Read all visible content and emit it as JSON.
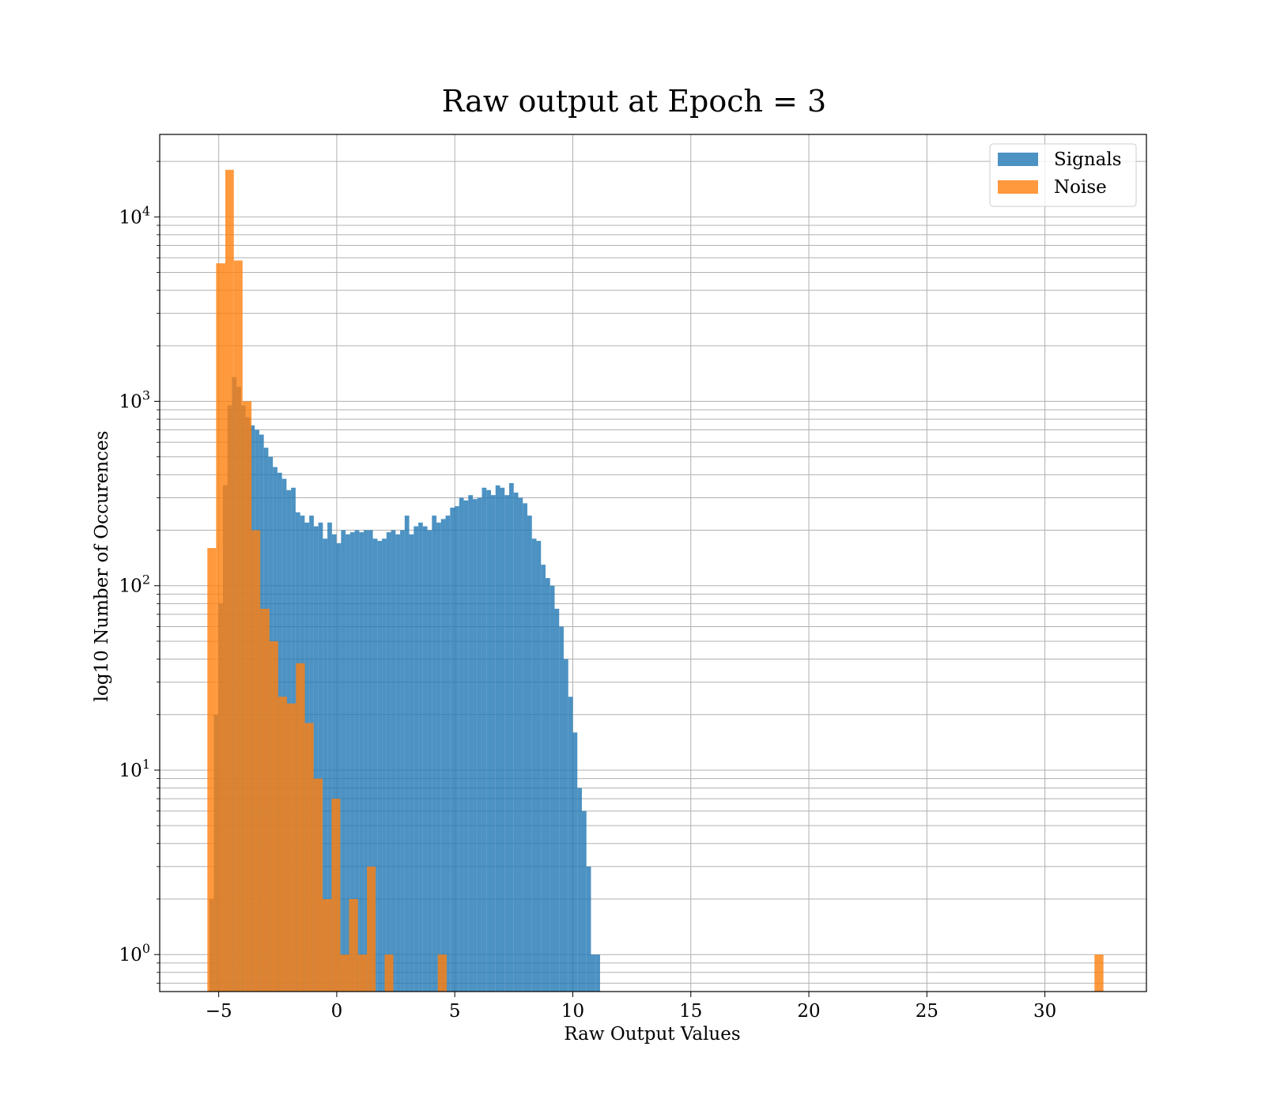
{
  "chart_data": {
    "type": "bar",
    "title": "Raw output at Epoch = 3",
    "xlabel": "Raw Output Values",
    "ylabel": "log10 Number of Occurences",
    "yscale": "log",
    "xlim": [
      -7.5,
      34.3
    ],
    "ylim": [
      0.63,
      28000
    ],
    "xticks": [
      -5,
      0,
      5,
      10,
      15,
      20,
      25,
      30
    ],
    "xtick_labels": [
      "−5",
      "0",
      "5",
      "10",
      "15",
      "20",
      "25",
      "30"
    ],
    "yticks": [
      1,
      10,
      100,
      1000,
      10000
    ],
    "ytick_labels": [
      {
        "base": "10",
        "exp": "0"
      },
      {
        "base": "10",
        "exp": "1"
      },
      {
        "base": "10",
        "exp": "2"
      },
      {
        "base": "10",
        "exp": "3"
      },
      {
        "base": "10",
        "exp": "4"
      }
    ],
    "grid": true,
    "legend_position": "top-right",
    "series": [
      {
        "name": "Signals",
        "color": "#1f77b4",
        "opacity": 0.8,
        "bin_start": -5.4,
        "bin_width": 0.1925,
        "values": [
          2,
          20,
          80,
          350,
          950,
          1350,
          1200,
          950,
          820,
          740,
          700,
          660,
          560,
          500,
          440,
          410,
          380,
          330,
          340,
          250,
          240,
          220,
          240,
          210,
          220,
          180,
          220,
          190,
          170,
          200,
          190,
          195,
          200,
          195,
          200,
          200,
          180,
          175,
          180,
          195,
          200,
          190,
          200,
          240,
          190,
          210,
          220,
          210,
          200,
          240,
          220,
          230,
          240,
          265,
          270,
          300,
          290,
          310,
          295,
          300,
          340,
          330,
          310,
          350,
          340,
          310,
          360,
          320,
          300,
          280,
          240,
          180,
          175,
          130,
          110,
          100,
          75,
          60,
          40,
          25,
          16,
          8,
          6,
          3,
          1,
          1
        ]
      },
      {
        "name": "Noise",
        "color": "#ff7f0e",
        "opacity": 0.8,
        "bin_edges": [
          -5.48,
          -5.11,
          -4.72,
          -4.36,
          -3.99,
          -3.61,
          -3.24,
          -2.85,
          -2.48,
          -2.11,
          -1.73,
          -1.35,
          -0.98,
          -0.6,
          -0.22,
          0.15,
          0.52,
          0.9,
          1.28,
          1.65,
          2.03,
          2.4,
          2.78,
          3.15,
          3.53,
          3.9,
          4.28,
          4.66,
          5.03,
          5.41,
          32.1,
          32.48
        ],
        "values": [
          160,
          5600,
          18000,
          5800,
          1000,
          200,
          75,
          50,
          25,
          23,
          38,
          18,
          9,
          2,
          7,
          1,
          2,
          1,
          3,
          0,
          1,
          0,
          0,
          0,
          0,
          0,
          1,
          0,
          0,
          0,
          1
        ]
      }
    ]
  }
}
